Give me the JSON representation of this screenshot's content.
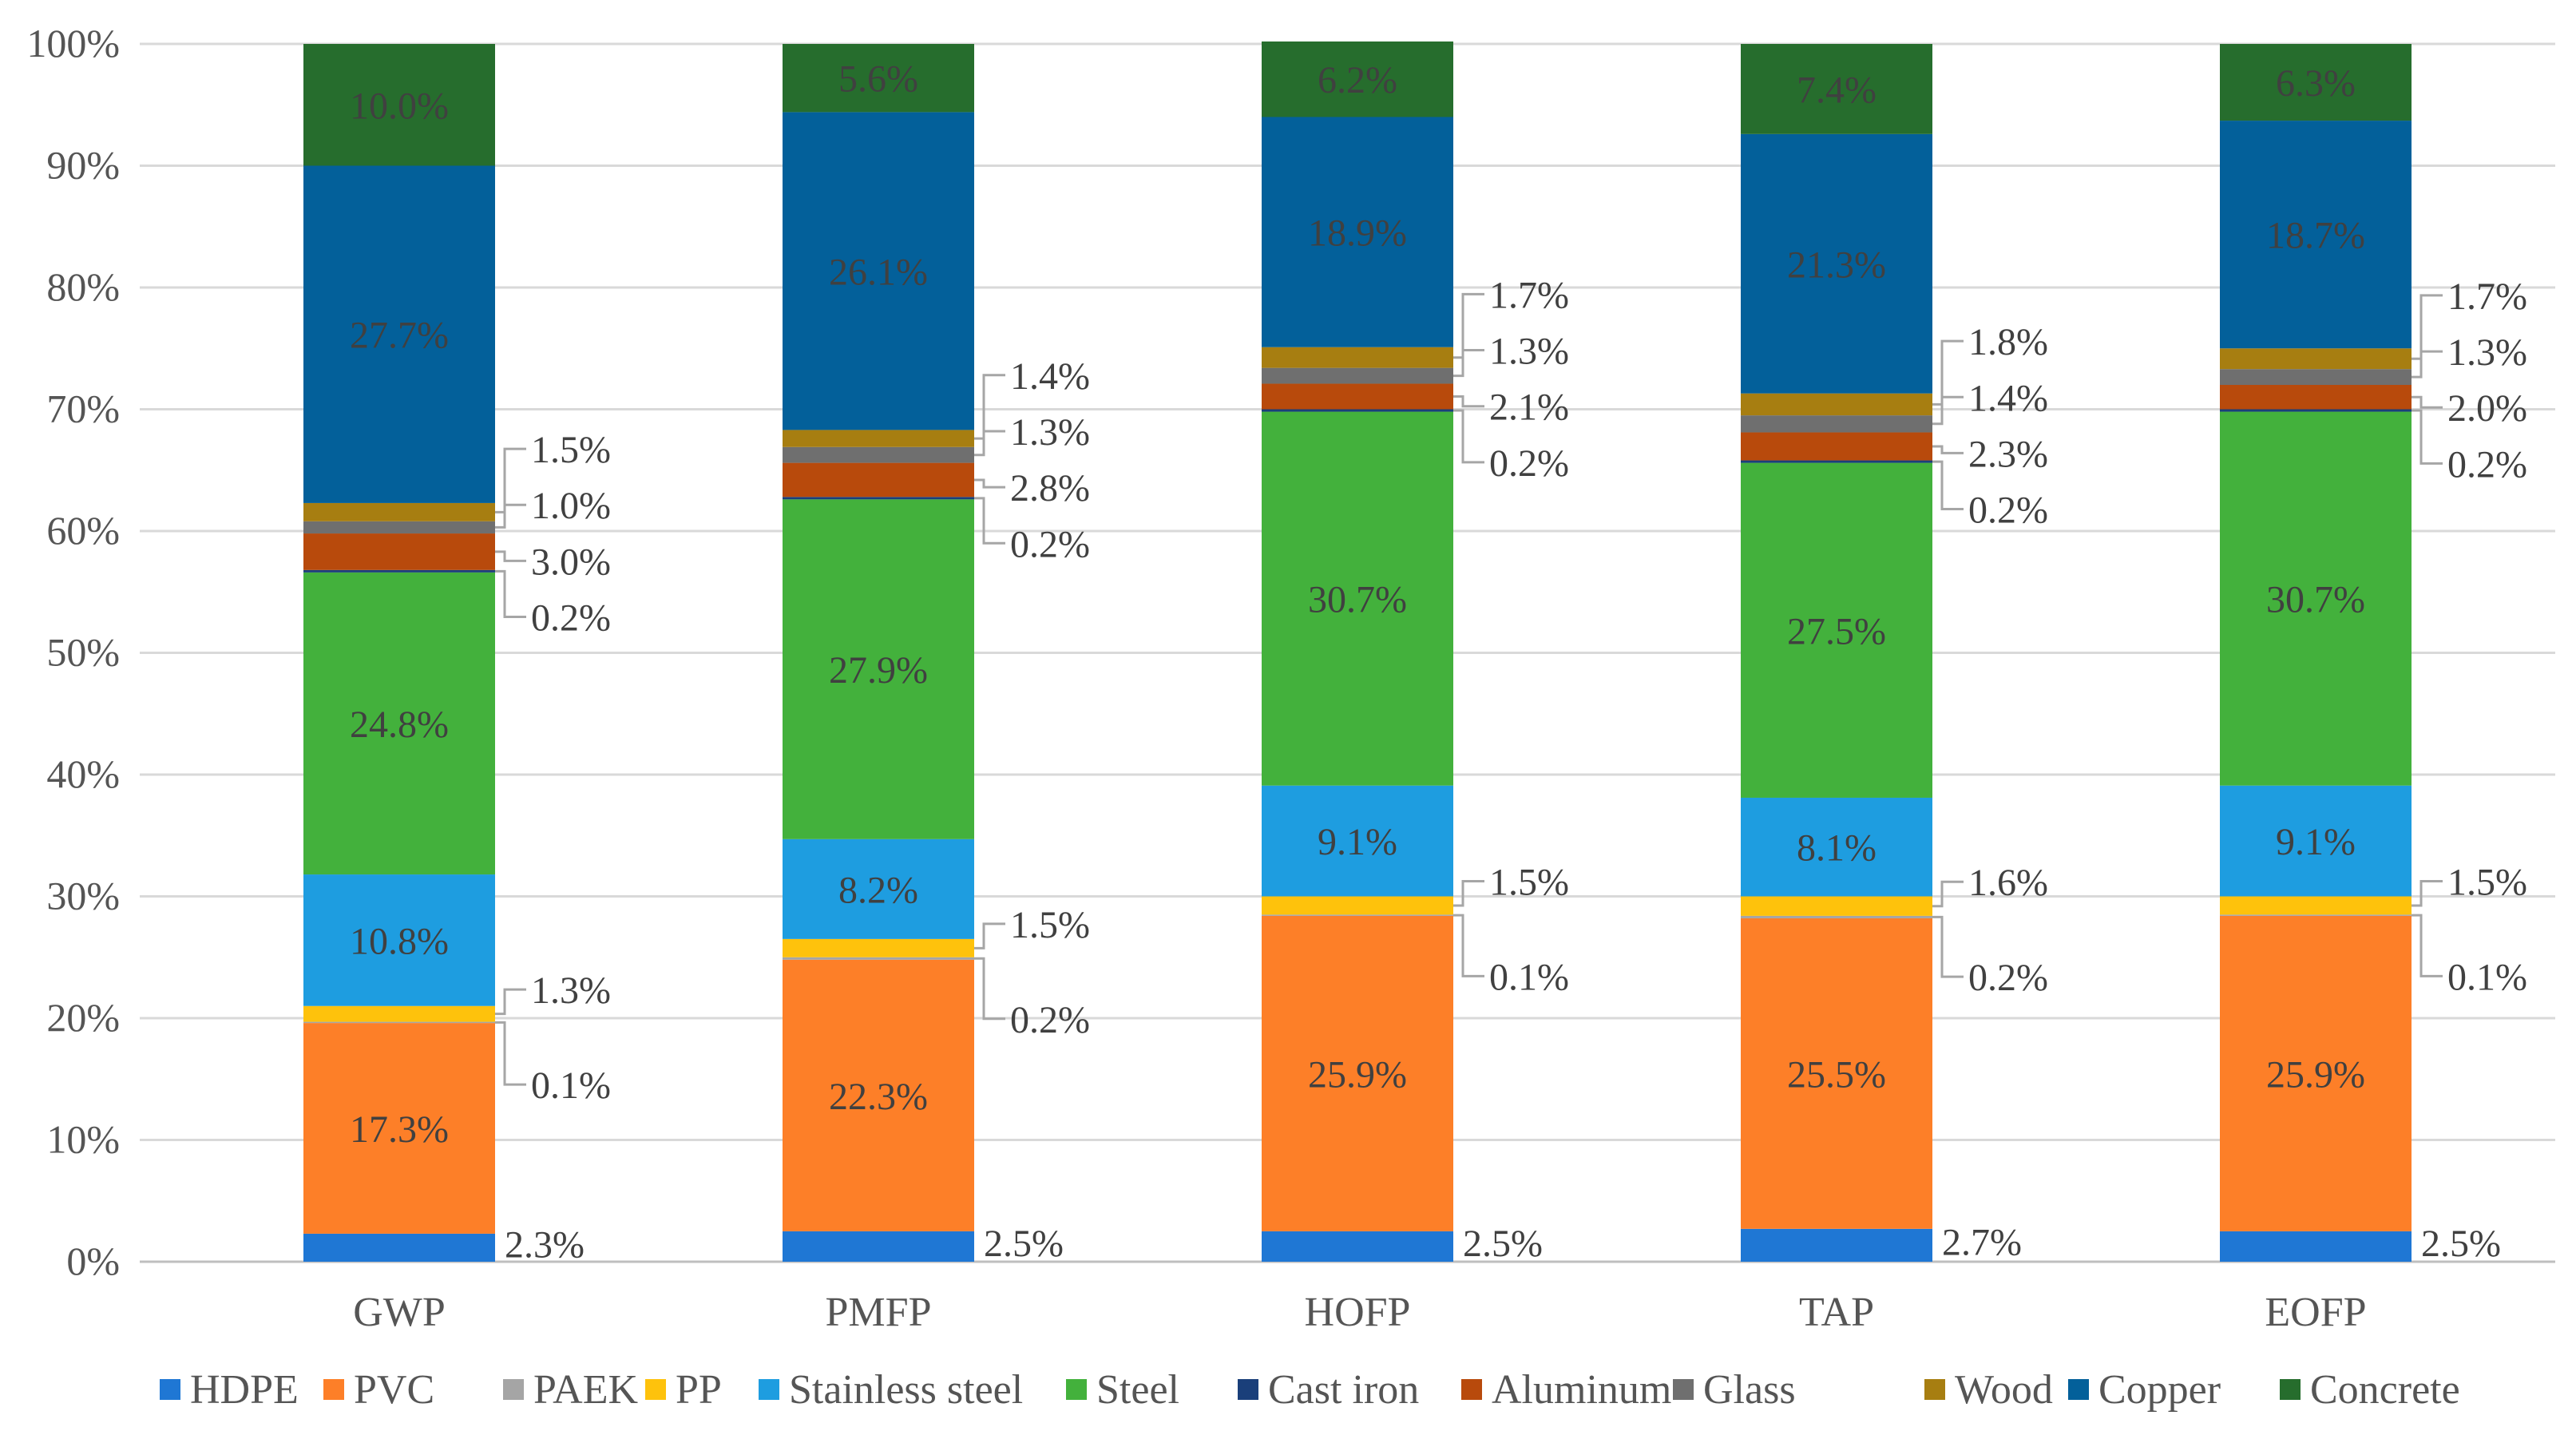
{
  "chart_data": {
    "type": "bar",
    "stacked": true,
    "percent": true,
    "categories": [
      "GWP",
      "PMFP",
      "HOFP",
      "TAP",
      "EOFP"
    ],
    "ylim": [
      0,
      100
    ],
    "yticks": [
      "0%",
      "10%",
      "20%",
      "30%",
      "40%",
      "50%",
      "60%",
      "70%",
      "80%",
      "90%",
      "100%"
    ],
    "grid": true,
    "legend_position": "bottom",
    "series": [
      {
        "name": "HDPE",
        "color": "#1f77d4",
        "values": [
          2.3,
          2.5,
          2.5,
          2.7,
          2.5
        ],
        "labels": [
          "2.3%",
          "2.5%",
          "2.5%",
          "2.7%",
          "2.5%"
        ],
        "label_pos": "outside"
      },
      {
        "name": "PVC",
        "color": "#fd7f28",
        "values": [
          17.3,
          22.3,
          25.9,
          25.5,
          25.9
        ],
        "labels": [
          "17.3%",
          "22.3%",
          "25.9%",
          "25.5%",
          "25.9%"
        ],
        "label_pos": "inside"
      },
      {
        "name": "PAEK",
        "color": "#a5a5a5",
        "values": [
          0.1,
          0.2,
          0.1,
          0.2,
          0.1
        ],
        "labels": [
          "0.1%",
          "0.2%",
          "0.1%",
          "0.2%",
          "0.1%"
        ],
        "label_pos": "outside"
      },
      {
        "name": "PP",
        "color": "#fec20c",
        "values": [
          1.3,
          1.5,
          1.5,
          1.6,
          1.5
        ],
        "labels": [
          "1.3%",
          "1.5%",
          "1.5%",
          "1.6%",
          "1.5%"
        ],
        "label_pos": "outside"
      },
      {
        "name": "Stainless steel",
        "color": "#1e9de0",
        "values": [
          10.8,
          8.2,
          9.1,
          8.1,
          9.1
        ],
        "labels": [
          "10.8%",
          "8.2%",
          "9.1%",
          "8.1%",
          "9.1%"
        ],
        "label_pos": "inside"
      },
      {
        "name": "Steel",
        "color": "#43b13c",
        "values": [
          24.8,
          27.9,
          30.7,
          27.5,
          30.7
        ],
        "labels": [
          "24.8%",
          "27.9%",
          "30.7%",
          "27.5%",
          "30.7%"
        ],
        "label_pos": "inside"
      },
      {
        "name": "Cast iron",
        "color": "#1a3f7a",
        "values": [
          0.2,
          0.2,
          0.2,
          0.2,
          0.2
        ],
        "labels": [
          "0.2%",
          "0.2%",
          "0.2%",
          "0.2%",
          "0.2%"
        ],
        "label_pos": "outside"
      },
      {
        "name": "Aluminum",
        "color": "#b84a0c",
        "values": [
          3.0,
          2.8,
          2.1,
          2.3,
          2.0
        ],
        "labels": [
          "3.0%",
          "2.8%",
          "2.1%",
          "2.3%",
          "2.0%"
        ],
        "label_pos": "outside"
      },
      {
        "name": "Glass",
        "color": "#6f6f6f",
        "values": [
          1.0,
          1.3,
          1.3,
          1.4,
          1.3
        ],
        "labels": [
          "1.0%",
          "1.3%",
          "1.3%",
          "1.4%",
          "1.3%"
        ],
        "label_pos": "outside"
      },
      {
        "name": "Wood",
        "color": "#a77e11",
        "values": [
          1.5,
          1.4,
          1.7,
          1.8,
          1.7
        ],
        "labels": [
          "1.5%",
          "1.4%",
          "1.7%",
          "1.8%",
          "1.7%"
        ],
        "label_pos": "outside"
      },
      {
        "name": "Copper",
        "color": "#03609a",
        "values": [
          27.7,
          26.1,
          18.9,
          21.3,
          18.7
        ],
        "labels": [
          "27.7%",
          "26.1%",
          "18.9%",
          "21.3%",
          "18.7%"
        ],
        "label_pos": "inside"
      },
      {
        "name": "Concrete",
        "color": "#266d2d",
        "values": [
          10.0,
          5.6,
          6.2,
          7.4,
          6.3
        ],
        "labels": [
          "10.0%",
          "5.6%",
          "6.2%",
          "7.4%",
          "6.3%"
        ],
        "label_pos": "inside"
      }
    ]
  }
}
